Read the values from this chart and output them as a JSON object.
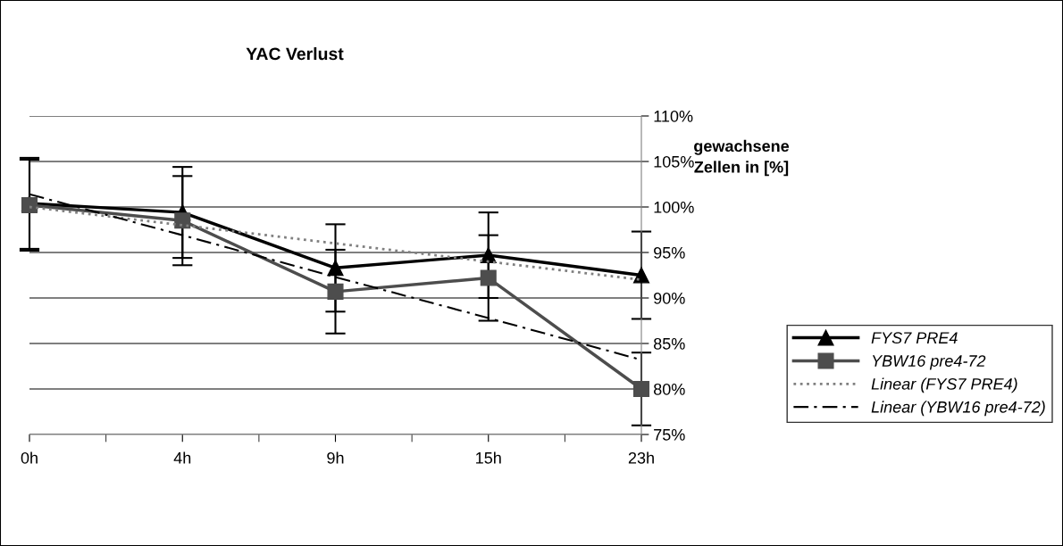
{
  "chart_data": {
    "type": "line",
    "title": "YAC Verlust",
    "ylabel": "gewachsene\nZellen in [%]",
    "categories": [
      "0h",
      "4h",
      "9h",
      "15h",
      "23h"
    ],
    "series": [
      {
        "name": "FYS7 PRE4",
        "color": "#000000",
        "marker": "triangle",
        "line_style": "solid",
        "values": [
          100.4,
          99.4,
          93.3,
          94.7,
          92.5
        ],
        "errors": [
          5.0,
          5.0,
          4.8,
          4.7,
          4.8
        ]
      },
      {
        "name": "YBW16 pre4-72",
        "color": "#4d4d4d",
        "marker": "square",
        "line_style": "solid",
        "values": [
          100.2,
          98.5,
          90.7,
          92.2,
          80.0
        ],
        "errors": [
          5.0,
          4.9,
          4.6,
          4.7,
          4.0
        ]
      },
      {
        "name": "Linear (FYS7 PRE4)",
        "color": "#808080",
        "marker": "none",
        "line_style": "dotted",
        "values": [
          100.0,
          98.0,
          96.0,
          94.0,
          92.0
        ]
      },
      {
        "name": "Linear (YBW16 pre4-72)",
        "color": "#000000",
        "marker": "none",
        "line_style": "dashdot",
        "values": [
          101.4,
          96.9,
          92.3,
          87.8,
          83.2
        ]
      }
    ],
    "ylim": [
      75,
      110
    ],
    "yticks": [
      {
        "value": 75,
        "label": "75%"
      },
      {
        "value": 80,
        "label": "80%"
      },
      {
        "value": 85,
        "label": "85%"
      },
      {
        "value": 90,
        "label": "90%"
      },
      {
        "value": 95,
        "label": "95%"
      },
      {
        "value": 100,
        "label": "100%"
      },
      {
        "value": 105,
        "label": "105%"
      },
      {
        "value": 110,
        "label": "110%"
      }
    ],
    "grid": "y",
    "legend": "right"
  }
}
